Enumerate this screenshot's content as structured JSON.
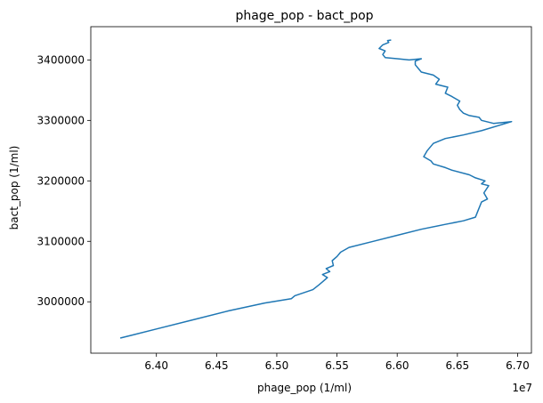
{
  "chart_data": {
    "type": "line",
    "title": "phage_pop - bact_pop",
    "xlabel": "phage_pop (1/ml)",
    "ylabel": "bact_pop (1/ml)",
    "x_offset_label": "1e7",
    "xlim": [
      6.3455,
      6.7115
    ],
    "ylim": [
      2915000,
      3455000
    ],
    "xticks": [
      6.4,
      6.45,
      6.5,
      6.55,
      6.6,
      6.65,
      6.7
    ],
    "xtick_labels": [
      "6.40",
      "6.45",
      "6.50",
      "6.55",
      "6.60",
      "6.65",
      "6.70"
    ],
    "yticks": [
      3000000,
      3100000,
      3200000,
      3300000,
      3400000
    ],
    "ytick_labels": [
      "3000000",
      "3100000",
      "3200000",
      "3300000",
      "3400000"
    ],
    "grid": false,
    "series": [
      {
        "color": "#1f77b4",
        "x": [
          6.37,
          6.38,
          6.4,
          6.43,
          6.46,
          6.49,
          6.512,
          6.515,
          6.53,
          6.535,
          6.538,
          6.542,
          6.538,
          6.544,
          6.541,
          6.547,
          6.546,
          6.55,
          6.553,
          6.56,
          6.58,
          6.6,
          6.62,
          6.64,
          6.655,
          6.665,
          6.667,
          6.67,
          6.675,
          6.672,
          6.676,
          6.67,
          6.673,
          6.665,
          6.66,
          6.645,
          6.64,
          6.63,
          6.628,
          6.622,
          6.625,
          6.63,
          6.64,
          6.655,
          6.67,
          6.695,
          6.68,
          6.67,
          6.668,
          6.66,
          6.655,
          6.652,
          6.65,
          6.652,
          6.645,
          6.64,
          6.642,
          6.632,
          6.635,
          6.63,
          6.62,
          6.618,
          6.615,
          6.615,
          6.62,
          6.61,
          6.6,
          6.59,
          6.588,
          6.59,
          6.585,
          6.588,
          6.593,
          6.592,
          6.595
        ],
        "y": [
          2940000,
          2945000,
          2955000,
          2970000,
          2985000,
          2998000,
          3005000,
          3010000,
          3020000,
          3028000,
          3033000,
          3040000,
          3045000,
          3050000,
          3055000,
          3060000,
          3068000,
          3075000,
          3082000,
          3090000,
          3100000,
          3110000,
          3120000,
          3128000,
          3134000,
          3140000,
          3150000,
          3165000,
          3170000,
          3180000,
          3192000,
          3195000,
          3200000,
          3205000,
          3210000,
          3218000,
          3222000,
          3228000,
          3233000,
          3240000,
          3250000,
          3262000,
          3270000,
          3276000,
          3283000,
          3298000,
          3295000,
          3300000,
          3305000,
          3308000,
          3312000,
          3318000,
          3325000,
          3332000,
          3340000,
          3345000,
          3355000,
          3360000,
          3368000,
          3375000,
          3380000,
          3385000,
          3392000,
          3398000,
          3402000,
          3400000,
          3402000,
          3404000,
          3409000,
          3415000,
          3419000,
          3425000,
          3429000,
          3432000,
          3433000
        ]
      }
    ]
  }
}
